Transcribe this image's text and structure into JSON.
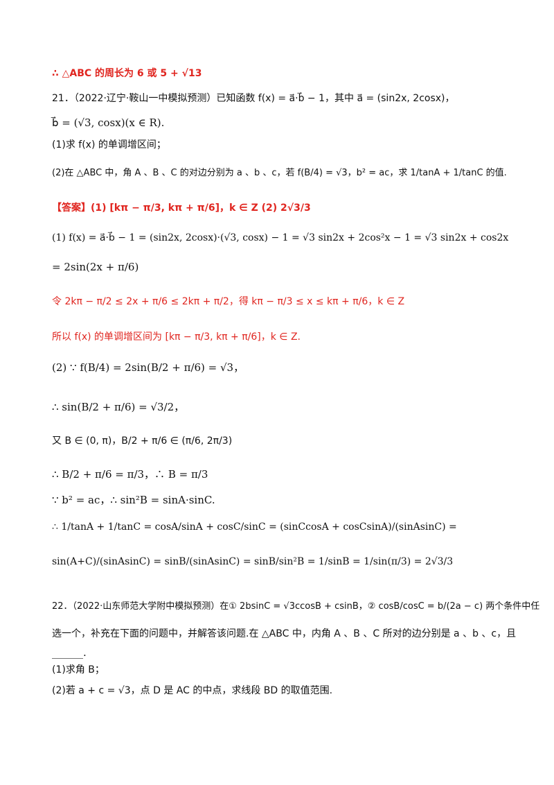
{
  "lines": [
    {
      "t": "∴ △ABC 的周长为 6 或 5 + √13",
      "color": "red"
    },
    {
      "t": "21．（2022·辽宁·鞍山一中模拟预测）已知函数 f(x) = a⃗·b⃗ − 1，其中 a⃗ = (sin2x, 2cosx)，",
      "color": "black"
    },
    {
      "t": "b⃗ = (√3, cosx)(x ∈ R).",
      "color": "black"
    },
    {
      "t": "(1)求 f(x) 的单调增区间；",
      "color": "black"
    },
    {
      "t": "(2)在 △ABC 中，角 A 、B 、C 的对边分别为 a 、b 、c，若 f(B/4) = √3，b² = ac，求 1/tanA + 1/tanC 的值.",
      "color": "black"
    },
    {
      "t": "【答案】(1) [kπ − π/3, kπ + π/6]，k ∈ Z (2) 2√3/3",
      "color": "red"
    },
    {
      "t": "(1) f(x) = a⃗·b⃗ − 1 = (sin2x, 2cosx)·(√3, cosx) − 1 = √3 sin2x + 2cos²x − 1 = √3 sin2x + cos2x",
      "color": "black"
    },
    {
      "t": "= 2sin(2x + π/6)",
      "color": "black"
    },
    {
      "t": "令 2kπ − π/2 ≤ 2x + π/6 ≤ 2kπ + π/2，得 kπ − π/3 ≤ x ≤ kπ + π/6，k ∈ Z",
      "color": "red"
    },
    {
      "t": "所以 f(x) 的单调增区间为 [kπ − π/3, kπ + π/6]，k ∈ Z.",
      "color": "red"
    },
    {
      "t": "(2) ∵ f(B/4) = 2sin(B/2 + π/6) = √3，",
      "color": "black"
    },
    {
      "t": "∴ sin(B/2 + π/6) = √3/2，",
      "color": "black"
    },
    {
      "t": "又 B ∈ (0, π)，B/2 + π/6 ∈ (π/6, 2π/3)",
      "color": "black"
    },
    {
      "t": "∴ B/2 + π/6 = π/3，∴ B = π/3",
      "color": "black"
    },
    {
      "t": "∵ b² = ac，∴ sin²B = sinA·sinC.",
      "color": "black"
    },
    {
      "t": "∴ 1/tanA + 1/tanC = cosA/sinA + cosC/sinC = (sinCcosA + cosCsinA)/(sinAsinC) =",
      "color": "black"
    },
    {
      "t": "sin(A+C)/(sinAsinC) = sinB/(sinAsinC) = sinB/sin²B = 1/sinB = 1/sin(π/3) = 2√3/3",
      "color": "black"
    },
    {
      "t": "22．（2022·山东师范大学附中模拟预测）在① 2bsinC = √3ccosB + csinB，② cosB/cosC = b/(2a − c) 两个条件中任",
      "color": "black"
    },
    {
      "t": "选一个，补充在下面的问题中，并解答该问题.在 △ABC 中，内角 A 、B 、C 所对的边分别是 a 、b 、c，且",
      "color": "black"
    },
    {
      "t": "______.",
      "color": "black"
    },
    {
      "t": "(1)求角 B；",
      "color": "black"
    },
    {
      "t": "(2)若 a + c = √3，点 D 是 AC 的中点，求线段 BD 的取值范围.",
      "color": "black"
    }
  ]
}
